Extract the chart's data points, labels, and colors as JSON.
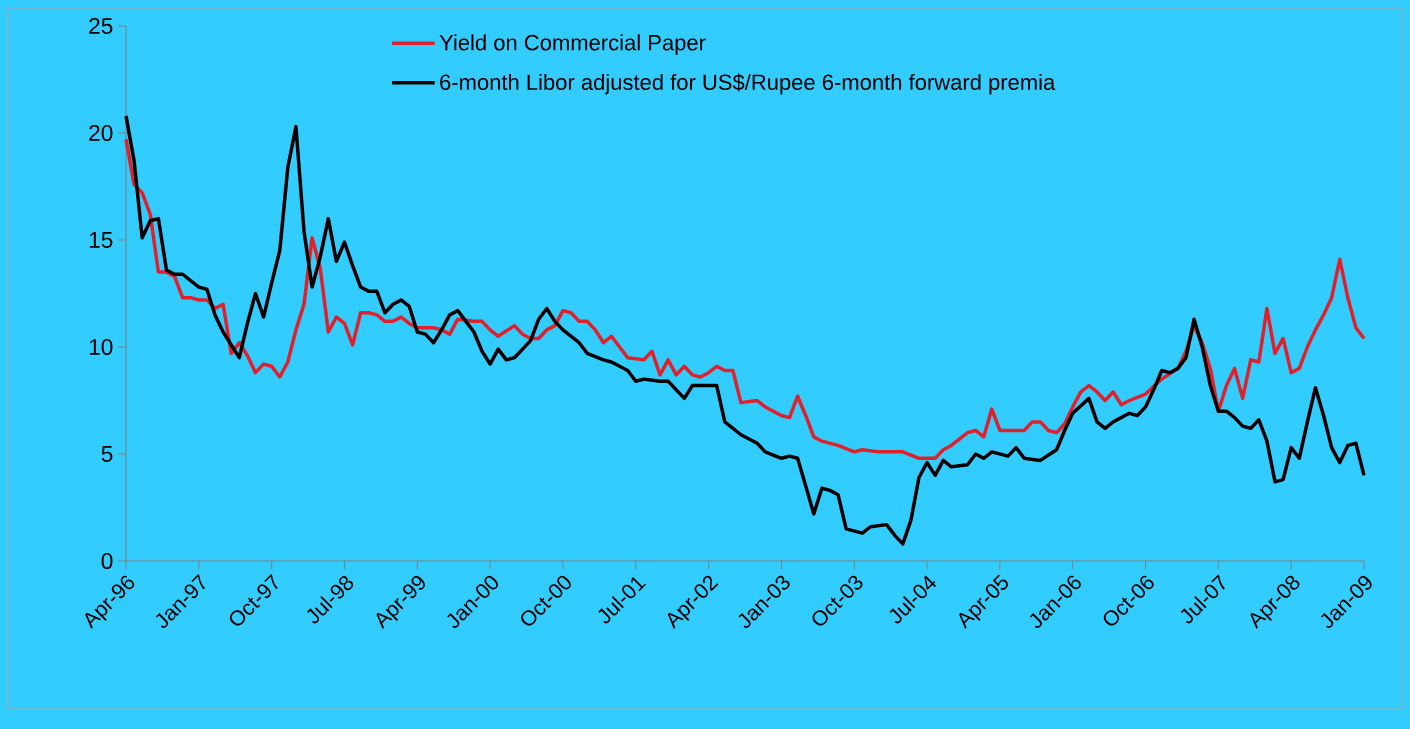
{
  "chart_data": {
    "type": "line",
    "xlim": [
      "1996-04",
      "2009-01"
    ],
    "xticks": [
      {
        "value": "1996-04",
        "label": "Apr-96"
      },
      {
        "value": "1997-01",
        "label": "Jan-97"
      },
      {
        "value": "1997-10",
        "label": "Oct-97"
      },
      {
        "value": "1998-07",
        "label": "Jul-98"
      },
      {
        "value": "1999-04",
        "label": "Apr-99"
      },
      {
        "value": "2000-01",
        "label": "Jan-00"
      },
      {
        "value": "2000-10",
        "label": "Oct-00"
      },
      {
        "value": "2001-07",
        "label": "Jul-01"
      },
      {
        "value": "2002-04",
        "label": "Apr-02"
      },
      {
        "value": "2003-01",
        "label": "Jan-03"
      },
      {
        "value": "2003-10",
        "label": "Oct-03"
      },
      {
        "value": "2004-07",
        "label": "Jul-04"
      },
      {
        "value": "2005-04",
        "label": "Apr-05"
      },
      {
        "value": "2006-01",
        "label": "Jan-06"
      },
      {
        "value": "2006-10",
        "label": "Oct-06"
      },
      {
        "value": "2007-07",
        "label": "Jul-07"
      },
      {
        "value": "2008-04",
        "label": "Apr-08"
      },
      {
        "value": "2009-01",
        "label": "Jan-09"
      }
    ],
    "ylim": [
      0,
      25
    ],
    "yticks": [
      0,
      5,
      10,
      15,
      20,
      25
    ],
    "legend": "top",
    "series": [
      {
        "name": "Yield on Commercial Paper",
        "color": "#e0202a",
        "x": [
          "1996-04",
          "1996-05",
          "1996-06",
          "1996-07",
          "1996-08",
          "1996-09",
          "1996-10",
          "1996-11",
          "1996-12",
          "1997-01",
          "1997-02",
          "1997-03",
          "1997-04",
          "1997-05",
          "1997-06",
          "1997-07",
          "1997-08",
          "1997-09",
          "1997-10",
          "1997-11",
          "1997-12",
          "1998-01",
          "1998-02",
          "1998-03",
          "1998-04",
          "1998-05",
          "1998-06",
          "1998-07",
          "1998-08",
          "1998-09",
          "1998-10",
          "1998-11",
          "1998-12",
          "1999-01",
          "1999-02",
          "1999-03",
          "1999-04",
          "1999-06",
          "1999-07",
          "1999-08",
          "1999-09",
          "1999-11",
          "1999-12",
          "2000-01",
          "2000-02",
          "2000-04",
          "2000-05",
          "2000-06",
          "2000-07",
          "2000-08",
          "2000-09",
          "2000-10",
          "2000-11",
          "2000-12",
          "2001-01",
          "2001-02",
          "2001-03",
          "2001-04",
          "2001-05",
          "2001-06",
          "2001-08",
          "2001-09",
          "2001-10",
          "2001-11",
          "2001-12",
          "2002-01",
          "2002-02",
          "2002-03",
          "2002-04",
          "2002-05",
          "2002-06",
          "2002-07",
          "2002-08",
          "2002-10",
          "2002-11",
          "2002-12",
          "2003-01",
          "2003-02",
          "2003-03",
          "2003-04",
          "2003-05",
          "2003-06",
          "2003-08",
          "2003-10",
          "2003-11",
          "2004-01",
          "2004-04",
          "2004-06",
          "2004-08",
          "2004-09",
          "2004-10",
          "2004-12",
          "2005-01",
          "2005-02",
          "2005-03",
          "2005-04",
          "2005-05",
          "2005-07",
          "2005-08",
          "2005-09",
          "2005-10",
          "2005-11",
          "2005-12",
          "2006-01",
          "2006-02",
          "2006-03",
          "2006-04",
          "2006-05",
          "2006-06",
          "2006-07",
          "2006-08",
          "2006-10",
          "2006-12",
          "2007-02",
          "2007-03",
          "2007-04",
          "2007-05",
          "2007-06",
          "2007-07",
          "2007-08",
          "2007-09",
          "2007-10",
          "2007-11",
          "2007-12",
          "2008-01",
          "2008-02",
          "2008-03",
          "2008-04",
          "2008-05",
          "2008-06",
          "2008-07",
          "2008-08",
          "2008-09",
          "2008-10",
          "2008-11",
          "2008-12",
          "2009-01"
        ],
        "values": [
          19.7,
          17.6,
          17.2,
          16.2,
          13.5,
          13.5,
          13.3,
          12.3,
          12.3,
          12.2,
          12.2,
          11.8,
          12.0,
          9.7,
          10.2,
          9.6,
          8.8,
          9.2,
          9.1,
          8.6,
          9.3,
          10.8,
          12.0,
          15.1,
          13.7,
          10.7,
          11.4,
          11.1,
          10.1,
          11.6,
          11.6,
          11.5,
          11.2,
          11.2,
          11.4,
          11.1,
          10.9,
          10.9,
          10.8,
          10.6,
          11.3,
          11.2,
          11.2,
          10.8,
          10.5,
          11.0,
          10.6,
          10.4,
          10.4,
          10.8,
          11.0,
          11.7,
          11.6,
          11.2,
          11.2,
          10.8,
          10.2,
          10.5,
          10.0,
          9.5,
          9.4,
          9.8,
          8.7,
          9.4,
          8.7,
          9.1,
          8.7,
          8.6,
          8.8,
          9.1,
          8.9,
          8.9,
          7.4,
          7.5,
          7.2,
          7.0,
          6.8,
          6.7,
          7.7,
          6.8,
          5.8,
          5.6,
          5.4,
          5.1,
          5.2,
          5.1,
          5.1,
          4.8,
          4.8,
          5.2,
          5.4,
          6.0,
          6.1,
          5.8,
          7.1,
          6.1,
          6.1,
          6.1,
          6.5,
          6.5,
          6.1,
          6.0,
          6.4,
          7.2,
          7.9,
          8.2,
          7.9,
          7.5,
          7.9,
          7.3,
          7.5,
          7.8,
          8.5,
          9.0,
          9.8,
          11.0,
          10.2,
          9.0,
          7.0,
          8.2,
          9.0,
          7.6,
          9.4,
          9.3,
          11.8,
          9.7,
          10.4,
          8.8,
          9.0,
          10.0,
          10.8,
          11.5,
          12.3,
          14.1,
          12.3,
          10.9,
          10.4
        ]
      },
      {
        "name": "6-month Libor adjusted for US$/Rupee 6-month forward premia",
        "color": "#000000",
        "x": [
          "1996-04",
          "1996-05",
          "1996-06",
          "1996-07",
          "1996-08",
          "1996-09",
          "1996-10",
          "1996-11",
          "1996-12",
          "1997-01",
          "1997-02",
          "1997-03",
          "1997-04",
          "1997-05",
          "1997-06",
          "1997-07",
          "1997-08",
          "1997-09",
          "1997-10",
          "1997-11",
          "1997-12",
          "1998-01",
          "1998-02",
          "1998-03",
          "1998-04",
          "1998-05",
          "1998-06",
          "1998-07",
          "1998-08",
          "1998-09",
          "1998-10",
          "1998-11",
          "1998-12",
          "1999-01",
          "1999-02",
          "1999-03",
          "1999-04",
          "1999-05",
          "1999-06",
          "1999-07",
          "1999-08",
          "1999-09",
          "1999-11",
          "1999-12",
          "2000-01",
          "2000-02",
          "2000-03",
          "2000-04",
          "2000-06",
          "2000-07",
          "2000-08",
          "2000-09",
          "2000-10",
          "2000-12",
          "2001-01",
          "2001-03",
          "2001-04",
          "2001-06",
          "2001-07",
          "2001-08",
          "2001-10",
          "2001-11",
          "2002-01",
          "2002-02",
          "2002-05",
          "2002-06",
          "2002-08",
          "2002-10",
          "2002-11",
          "2003-01",
          "2003-02",
          "2003-03",
          "2003-04",
          "2003-05",
          "2003-06",
          "2003-07",
          "2003-08",
          "2003-09",
          "2003-11",
          "2003-12",
          "2004-02",
          "2004-03",
          "2004-04",
          "2004-05",
          "2004-06",
          "2004-07",
          "2004-08",
          "2004-09",
          "2004-10",
          "2004-12",
          "2005-01",
          "2005-02",
          "2005-03",
          "2005-05",
          "2005-06",
          "2005-07",
          "2005-09",
          "2005-11",
          "2005-12",
          "2006-01",
          "2006-03",
          "2006-04",
          "2006-05",
          "2006-06",
          "2006-08",
          "2006-09",
          "2006-10",
          "2006-11",
          "2006-12",
          "2007-01",
          "2007-02",
          "2007-03",
          "2007-04",
          "2007-05",
          "2007-06",
          "2007-07",
          "2007-08",
          "2007-09",
          "2007-10",
          "2007-11",
          "2007-12",
          "2008-01",
          "2008-02",
          "2008-03",
          "2008-04",
          "2008-05",
          "2008-06",
          "2008-07",
          "2008-08",
          "2008-09",
          "2008-10",
          "2008-11",
          "2008-12",
          "2009-01"
        ],
        "values": [
          20.8,
          18.7,
          15.1,
          15.9,
          16.0,
          13.6,
          13.4,
          13.4,
          13.1,
          12.8,
          12.7,
          11.5,
          10.7,
          10.1,
          9.5,
          11.1,
          12.5,
          11.4,
          13.0,
          14.5,
          18.4,
          20.3,
          15.4,
          12.8,
          14.2,
          16.0,
          14.0,
          14.9,
          13.8,
          12.8,
          12.6,
          12.6,
          11.6,
          12.0,
          12.2,
          11.9,
          10.7,
          10.6,
          10.2,
          10.8,
          11.5,
          11.7,
          10.7,
          9.8,
          9.2,
          9.9,
          9.4,
          9.5,
          10.3,
          11.3,
          11.8,
          11.2,
          10.8,
          10.2,
          9.7,
          9.4,
          9.3,
          8.9,
          8.4,
          8.5,
          8.4,
          8.4,
          7.6,
          8.2,
          8.2,
          6.5,
          5.9,
          5.5,
          5.1,
          4.8,
          4.9,
          4.8,
          3.5,
          2.2,
          3.4,
          3.3,
          3.1,
          1.5,
          1.3,
          1.6,
          1.7,
          1.2,
          0.8,
          1.9,
          3.9,
          4.6,
          4.0,
          4.7,
          4.4,
          4.5,
          5.0,
          4.8,
          5.1,
          4.9,
          5.3,
          4.8,
          4.7,
          5.2,
          6.1,
          6.9,
          7.6,
          6.5,
          6.2,
          6.5,
          6.9,
          6.8,
          7.2,
          8.0,
          8.9,
          8.8,
          9.0,
          9.5,
          11.3,
          10.0,
          8.2,
          7.0,
          7.0,
          6.7,
          6.3,
          6.2,
          6.6,
          5.6,
          3.7,
          3.8,
          5.3,
          4.8,
          6.5,
          8.1,
          6.8,
          5.3,
          4.6,
          5.4,
          5.5,
          4.0
        ]
      }
    ]
  }
}
